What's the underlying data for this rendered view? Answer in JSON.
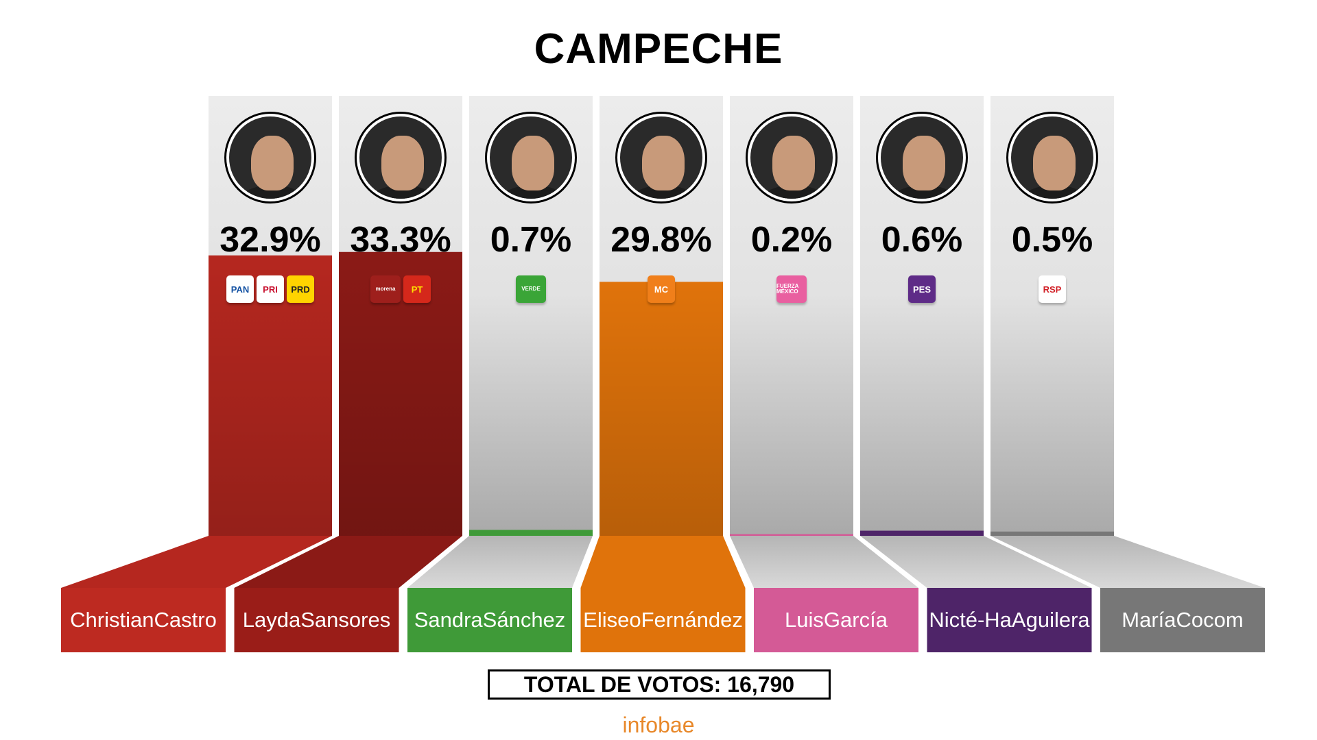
{
  "chart_data": {
    "type": "bar",
    "title": "CAMPECHE",
    "categories": [
      "Christian Castro",
      "Layda Sansores",
      "Sandra Sánchez",
      "Eliseo Fernández",
      "Luis García",
      "Nicté-Ha Aguilera",
      "María Cocom"
    ],
    "values": [
      32.9,
      33.3,
      0.7,
      29.8,
      0.2,
      0.6,
      0.5
    ],
    "value_labels": [
      "32.9%",
      "33.3%",
      "0.7%",
      "29.8%",
      "0.2%",
      "0.6%",
      "0.5%"
    ],
    "ylim": [
      0,
      100
    ],
    "grid": false,
    "legend": "none"
  },
  "candidates": [
    {
      "first": "Christian",
      "last": "Castro",
      "pct": "32.9%",
      "color": "#b5271f",
      "label_color": "#bd2a21",
      "logos": [
        {
          "text": "PAN",
          "bg": "#fff",
          "fg": "#1452a3",
          "icon": "pan-logo-icon"
        },
        {
          "text": "PRI",
          "bg": "#fff",
          "fg": "#c8102e",
          "icon": "pri-logo-icon"
        },
        {
          "text": "PRD",
          "bg": "#ffd400",
          "fg": "#222",
          "icon": "prd-logo-icon"
        }
      ]
    },
    {
      "first": "Layda",
      "last": "Sansores",
      "pct": "33.3%",
      "color": "#8b1a16",
      "label_color": "#9a1d18",
      "logos": [
        {
          "text": "morena",
          "bg": "#9e1f1c",
          "fg": "#fff",
          "icon": "morena-logo-icon"
        },
        {
          "text": "PT",
          "bg": "#d5281b",
          "fg": "#ffe100",
          "icon": "pt-logo-icon"
        }
      ]
    },
    {
      "first": "Sandra",
      "last": "Sánchez",
      "pct": "0.7%",
      "color": "#3f9a38",
      "label_color": "#3f9a38",
      "logos": [
        {
          "text": "VERDE",
          "bg": "#3aa537",
          "fg": "#fff",
          "icon": "verde-logo-icon"
        }
      ]
    },
    {
      "first": "Eliseo",
      "last": "Fernández",
      "pct": "29.8%",
      "color": "#e0730b",
      "label_color": "#e0730b",
      "logos": [
        {
          "text": "MC",
          "bg": "#f07f1a",
          "fg": "#fff",
          "icon": "movimiento-ciudadano-logo-icon"
        }
      ]
    },
    {
      "first": "Luis",
      "last": "García",
      "pct": "0.2%",
      "color": "#d45a96",
      "label_color": "#d45a96",
      "logos": [
        {
          "text": "FUERZA MÉXICO",
          "bg": "#e95fa0",
          "fg": "#fff",
          "icon": "fuerza-mexico-logo-icon"
        }
      ]
    },
    {
      "first": "Nicté-Ha",
      "last": "Aguilera",
      "pct": "0.6%",
      "color": "#4e2468",
      "label_color": "#4e2468",
      "logos": [
        {
          "text": "PES",
          "bg": "#5e2b87",
          "fg": "#fff",
          "icon": "pes-logo-icon"
        }
      ]
    },
    {
      "first": "María",
      "last": "Cocom",
      "pct": "0.5%",
      "color": "#777777",
      "label_color": "#777777",
      "logos": [
        {
          "text": "RSP",
          "bg": "#fff",
          "fg": "#d11f26",
          "icon": "rsp-logo-icon"
        }
      ]
    }
  ],
  "total_label": "TOTAL DE VOTOS: 16,790",
  "brand": "infobae"
}
